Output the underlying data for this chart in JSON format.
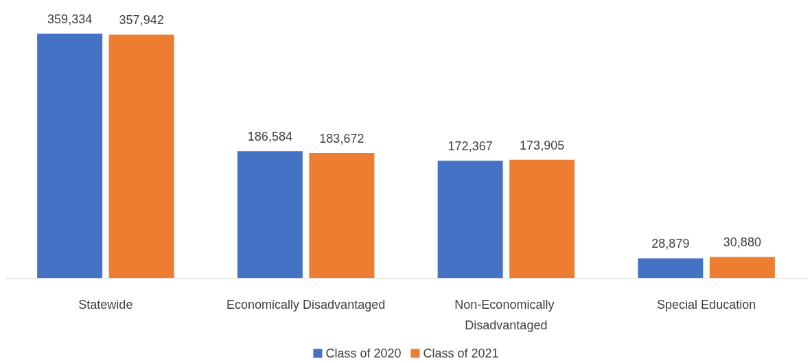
{
  "chart_data": {
    "type": "bar",
    "categories": [
      "Statewide",
      "Economically Disadvantaged",
      "Non-Economically Disadvantaged",
      "Special Education"
    ],
    "series": [
      {
        "name": "Class of 2020",
        "color": "#4472c4",
        "values": [
          359334,
          186584,
          172367,
          28879
        ],
        "value_labels": [
          "359,334",
          "186,584",
          "172,367",
          "28,879"
        ]
      },
      {
        "name": "Class of 2021",
        "color": "#ed7d31",
        "values": [
          357942,
          183672,
          173905,
          30880
        ],
        "value_labels": [
          "357,942",
          "183,672",
          "173,905",
          "30,880"
        ]
      }
    ],
    "legend": "bottom"
  }
}
